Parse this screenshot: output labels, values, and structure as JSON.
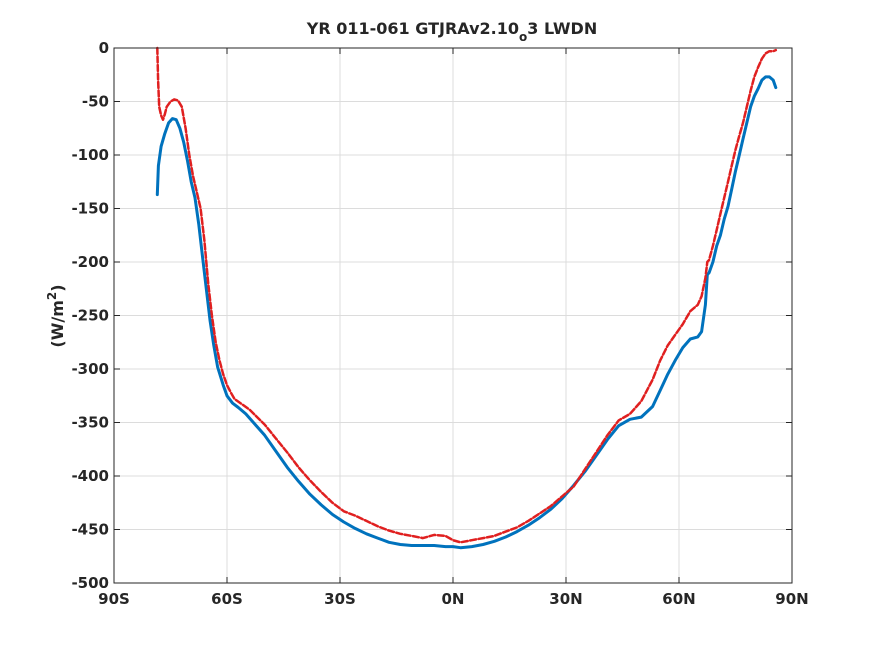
{
  "chart_data": {
    "type": "line",
    "title": {
      "main": "YR 011-061 GTJRAv2.10",
      "subscript": "o",
      "suffix": "3 LWDN"
    },
    "xlabel": "",
    "ylabel": {
      "prefix": "(W/m",
      "superscript": "2",
      "suffix": ")"
    },
    "xlim": [
      -90,
      90
    ],
    "ylim": [
      -500,
      0
    ],
    "grid": true,
    "legend": "none",
    "xticks": [
      {
        "value": -90,
        "label": "90S"
      },
      {
        "value": -60,
        "label": "60S"
      },
      {
        "value": -30,
        "label": "30S"
      },
      {
        "value": 0,
        "label": "0N"
      },
      {
        "value": 30,
        "label": "30N"
      },
      {
        "value": 60,
        "label": "60N"
      },
      {
        "value": 90,
        "label": "90N"
      }
    ],
    "yticks": [
      {
        "value": 0,
        "label": "0"
      },
      {
        "value": -50,
        "label": "-50"
      },
      {
        "value": -100,
        "label": "-100"
      },
      {
        "value": -150,
        "label": "-150"
      },
      {
        "value": -200,
        "label": "-200"
      },
      {
        "value": -250,
        "label": "-250"
      },
      {
        "value": -300,
        "label": "-300"
      },
      {
        "value": -350,
        "label": "-350"
      },
      {
        "value": -400,
        "label": "-400"
      },
      {
        "value": -450,
        "label": "-450"
      },
      {
        "value": -500,
        "label": "-500"
      }
    ],
    "series": [
      {
        "color": "#0072bd",
        "style": "solid",
        "x": [
          -78.5,
          -78.2,
          -77.5,
          -76.5,
          -75.5,
          -74.5,
          -73.5,
          -72.5,
          -71.5,
          -70.5,
          -69.5,
          -68.5,
          -67.5,
          -66.5,
          -65.5,
          -64.5,
          -63.5,
          -62.5,
          -61,
          -60,
          -58.5,
          -57,
          -55,
          -53,
          -50,
          -47,
          -44,
          -41,
          -38,
          -35,
          -32,
          -29,
          -26,
          -23,
          -20,
          -17,
          -14,
          -11,
          -8,
          -5,
          -2,
          0,
          2,
          5,
          8,
          11,
          14,
          17,
          20,
          23,
          26,
          29,
          32,
          35,
          38,
          41,
          44,
          47,
          50,
          53,
          55,
          57,
          59,
          61,
          63,
          65,
          66,
          67,
          67.5,
          68,
          69,
          70,
          71,
          72,
          73,
          74,
          75,
          76,
          77,
          78,
          79,
          80,
          81,
          82,
          83,
          84,
          85,
          85.7
        ],
        "y": [
          -137,
          -110,
          -92,
          -80,
          -70,
          -66,
          -67,
          -75,
          -88,
          -105,
          -125,
          -140,
          -165,
          -195,
          -225,
          -255,
          -278,
          -298,
          -315,
          -325,
          -332,
          -336,
          -342,
          -350,
          -362,
          -377,
          -392,
          -405,
          -417,
          -427,
          -436,
          -443,
          -449,
          -454,
          -458,
          -462,
          -464,
          -465,
          -465,
          -465,
          -466,
          -466,
          -467,
          -466,
          -464,
          -461,
          -457,
          -452,
          -446,
          -439,
          -431,
          -421,
          -409,
          -396,
          -381,
          -366,
          -353,
          -347,
          -345,
          -335,
          -320,
          -305,
          -292,
          -280,
          -272,
          -270,
          -265,
          -240,
          -212,
          -210,
          -200,
          -185,
          -175,
          -160,
          -148,
          -132,
          -115,
          -100,
          -85,
          -70,
          -55,
          -45,
          -38,
          -30,
          -27,
          -27,
          -30,
          -37
        ]
      },
      {
        "color": "#e02020",
        "style": "dashed",
        "x": [
          -78.5,
          -78.3,
          -78,
          -77.5,
          -77,
          -76.5,
          -76,
          -75,
          -74,
          -73,
          -72,
          -71,
          -70,
          -69,
          -68,
          -67,
          -66,
          -65,
          -64,
          -63,
          -62,
          -61,
          -60,
          -59,
          -58,
          -56,
          -54,
          -52,
          -50,
          -47,
          -44,
          -41,
          -38,
          -35,
          -32,
          -29,
          -26,
          -23,
          -20,
          -17,
          -14,
          -11,
          -8,
          -5,
          -2,
          0,
          2,
          5,
          8,
          11,
          14,
          17,
          20,
          23,
          26,
          29,
          32,
          35,
          38,
          41,
          44,
          47,
          50,
          53,
          55,
          57,
          59,
          61,
          63,
          65,
          66,
          67,
          67.5,
          68,
          69,
          70,
          71,
          72,
          73,
          74,
          75,
          76,
          77,
          78,
          79,
          80,
          81,
          82,
          83,
          84,
          85,
          85.7
        ],
        "y": [
          0,
          -30,
          -55,
          -63,
          -67,
          -62,
          -55,
          -50,
          -48,
          -49,
          -55,
          -75,
          -100,
          -120,
          -135,
          -150,
          -180,
          -220,
          -250,
          -275,
          -292,
          -305,
          -315,
          -322,
          -328,
          -333,
          -338,
          -345,
          -352,
          -365,
          -378,
          -392,
          -404,
          -415,
          -425,
          -433,
          -437,
          -442,
          -447,
          -451,
          -454,
          -456,
          -458,
          -455,
          -456,
          -460,
          -462,
          -460,
          -458,
          -456,
          -452,
          -448,
          -442,
          -435,
          -428,
          -419,
          -410,
          -394,
          -378,
          -362,
          -348,
          -342,
          -330,
          -310,
          -292,
          -278,
          -268,
          -258,
          -246,
          -240,
          -232,
          -215,
          -200,
          -198,
          -185,
          -170,
          -155,
          -140,
          -125,
          -110,
          -95,
          -82,
          -70,
          -55,
          -40,
          -27,
          -18,
          -10,
          -5,
          -3,
          -3,
          -2
        ]
      }
    ]
  }
}
